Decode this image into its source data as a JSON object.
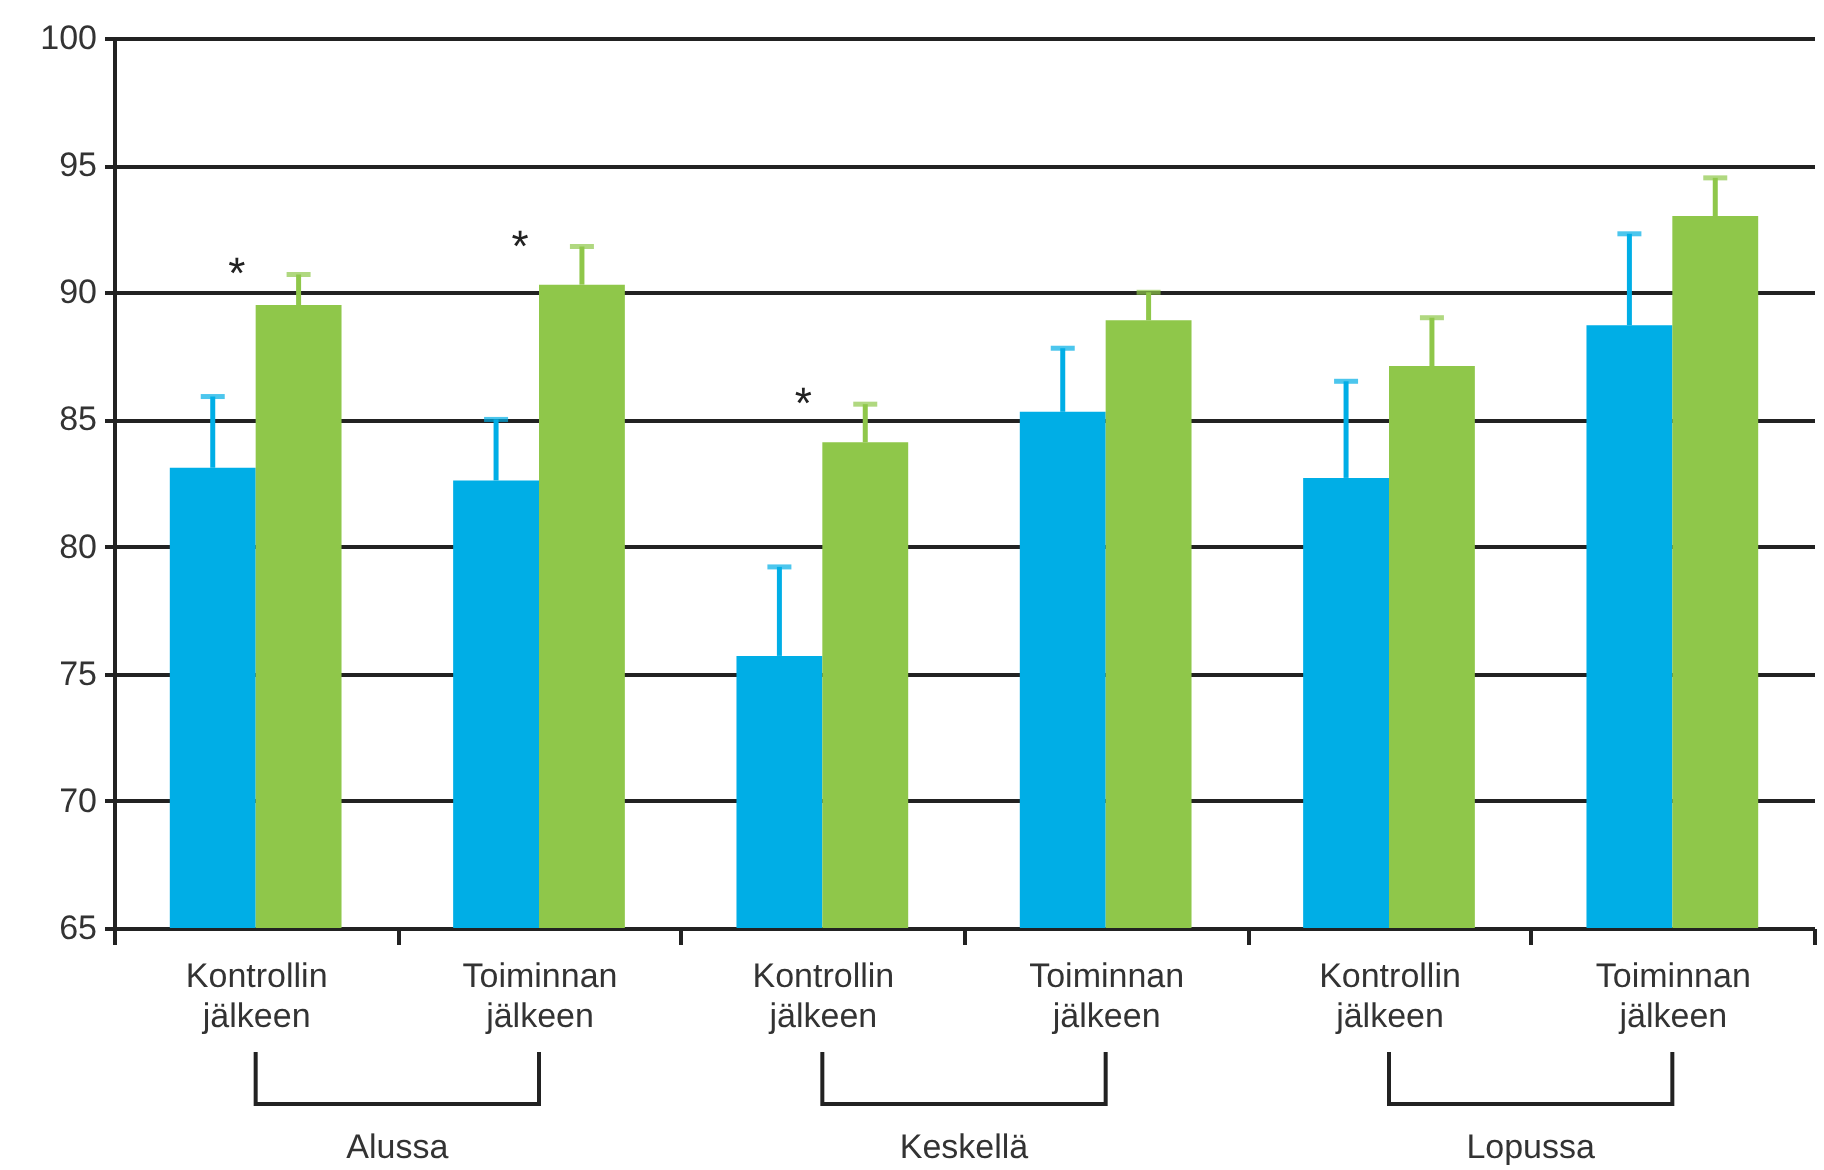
{
  "chart_data": {
    "type": "bar",
    "categories": [
      "Kontrollin jälkeen",
      "Toiminnan jälkeen",
      "Kontrollin jälkeen",
      "Toiminnan jälkeen",
      "Kontrollin jälkeen",
      "Toiminnan jälkeen"
    ],
    "series": [
      {
        "color": "#00aee6",
        "values": [
          83.1,
          82.6,
          75.7,
          85.3,
          82.7,
          88.7
        ],
        "errors": [
          [
            83.1,
            85.9
          ],
          [
            82.6,
            85.0
          ],
          [
            75.7,
            79.2
          ],
          [
            85.3,
            87.8
          ],
          [
            82.7,
            86.5
          ],
          [
            88.7,
            92.3
          ]
        ]
      },
      {
        "color": "#8fc74a",
        "values": [
          89.5,
          90.3,
          84.1,
          88.9,
          87.1,
          93.0
        ],
        "errors": [
          [
            89.5,
            90.7
          ],
          [
            90.3,
            91.8
          ],
          [
            84.1,
            85.6
          ],
          [
            88.9,
            90.0
          ],
          [
            87.1,
            89.0
          ],
          [
            93.0,
            94.5
          ]
        ]
      }
    ],
    "ylim": [
      65,
      100
    ],
    "yticks": [
      65,
      70,
      75,
      80,
      85,
      90,
      95,
      100
    ],
    "grid": "y",
    "annotations": [
      "Alussa",
      "Keskellä",
      "Lopussa",
      "*",
      "*",
      "*"
    ]
  }
}
